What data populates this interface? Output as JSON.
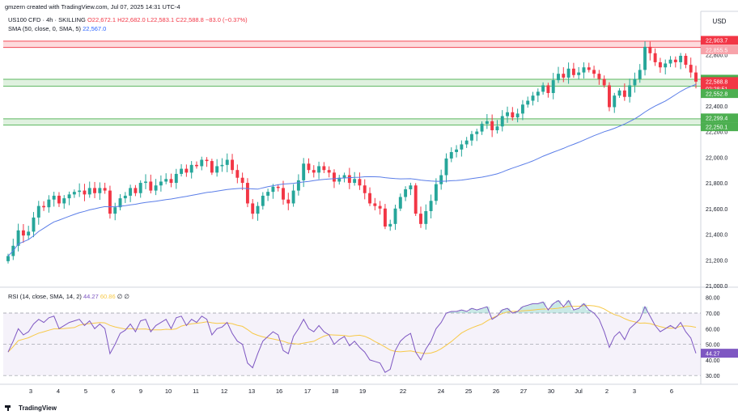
{
  "header": {
    "created_by": "gmzern created with TradingView.com, Jul 07, 2025 14:31 UTC-4",
    "symbol": "US100 CFD · 4h · SKILLING",
    "ohlc": "O22,672.1 H22,682.0 L22,583.1 C22,588.8 −83.0 (−0.37%)",
    "sma_label": "SMA (50, close, 0, SMA, 5)",
    "sma_value": "22,567.0",
    "rsi_label": "RSI (14, close, SMA, 14, 2)",
    "rsi_value": "44.27",
    "rsi_ma_value": "60.86",
    "rsi_extra": "∅ ∅",
    "logo": "TradingView"
  },
  "colors": {
    "up": "#26a69a",
    "down": "#f23645",
    "sma": "#5b7ee8",
    "rsi": "#7e57c2",
    "rsi_ma": "#f7c948",
    "zone_green": "#4caf50",
    "zone_red": "#f23645"
  },
  "chart_data": [
    {
      "type": "candlestick",
      "currency": "USD",
      "y_ticks": [
        21000,
        21200,
        21400,
        21600,
        21800,
        22000,
        22200,
        22400,
        22600,
        22800
      ],
      "y_tick_labels": [
        "21,000.0",
        "21,200.0",
        "21,400.0",
        "21,600.0",
        "21,800.0",
        "22,000.0",
        "22,200.0",
        "22,400.0",
        "22,600.0",
        "22,800.0"
      ],
      "ylim": [
        21000,
        22960
      ],
      "x_labels": [
        "3",
        "4",
        "5",
        "6",
        "9",
        "10",
        "11",
        "12",
        "13",
        "16",
        "17",
        "18",
        "19",
        "22",
        "23",
        "24",
        "25",
        "26",
        "27",
        "30",
        "Jul",
        "2",
        "3",
        "6"
      ],
      "x_label_display": [
        "3",
        "4",
        "5",
        "6",
        "9",
        "10",
        "11",
        "12",
        "13",
        "16",
        "17",
        "18",
        "19",
        "22",
        "24",
        "25",
        "26",
        "27",
        "30",
        "Jul",
        "2",
        "3",
        "6"
      ],
      "closes": [
        21230,
        21310,
        21430,
        21390,
        21420,
        21530,
        21620,
        21610,
        21670,
        21700,
        21640,
        21680,
        21710,
        21730,
        21740,
        21710,
        21760,
        21720,
        21760,
        21740,
        21560,
        21610,
        21680,
        21700,
        21760,
        21720,
        21800,
        21810,
        21740,
        21780,
        21810,
        21830,
        21800,
        21870,
        21910,
        21880,
        21940,
        21930,
        21980,
        21970,
        21880,
        21930,
        21940,
        21980,
        21900,
        21840,
        21800,
        21640,
        21560,
        21620,
        21700,
        21730,
        21770,
        21760,
        21670,
        21640,
        21740,
        21820,
        21950,
        21900,
        21880,
        21930,
        21900,
        21880,
        21810,
        21840,
        21860,
        21800,
        21830,
        21780,
        21720,
        21640,
        21620,
        21600,
        21460,
        21480,
        21600,
        21690,
        21750,
        21780,
        21560,
        21480,
        21580,
        21660,
        21790,
        21860,
        21990,
        22040,
        22060,
        22100,
        22130,
        22180,
        22200,
        22260,
        22280,
        22210,
        22240,
        22320,
        22350,
        22310,
        22340,
        22410,
        22440,
        22480,
        22510,
        22560,
        22500,
        22600,
        22650,
        22620,
        22690,
        22640,
        22660,
        22700,
        22680,
        22650,
        22610,
        22560,
        22390,
        22480,
        22520,
        22470,
        22560,
        22610,
        22680,
        22860,
        22810,
        22740,
        22700,
        22730,
        22760,
        22740,
        22790,
        22720,
        22660,
        22588.8
      ],
      "sma_last": 22567.0,
      "zones": [
        {
          "color": "red",
          "from": 22855.5,
          "to": 22903.7
        },
        {
          "color": "green",
          "from": 22552.8,
          "to": 22607.3
        },
        {
          "color": "green",
          "from": 22250.1,
          "to": 22299.4
        }
      ],
      "price_labels": [
        {
          "value": 22903.7,
          "text": "22,903.7",
          "kind": "red"
        },
        {
          "value": 22855.5,
          "text": "22,855.5",
          "kind": "red-light"
        },
        {
          "value": 22607.3,
          "text": "22,607.3",
          "kind": "green"
        },
        {
          "value": 22588.8,
          "text": "22,588.8",
          "kind": "red"
        },
        {
          "value": 22560.0,
          "text": "02:28:51",
          "kind": "red"
        },
        {
          "value": 22552.8,
          "text": "22,552.8",
          "kind": "green"
        },
        {
          "value": 22299.4,
          "text": "22,299.4",
          "kind": "green"
        },
        {
          "value": 22250.1,
          "text": "22,250.1",
          "kind": "green"
        }
      ]
    },
    {
      "type": "line",
      "name": "RSI (14, close, SMA, 14, 2)",
      "y_ticks": [
        30,
        40,
        50,
        60,
        70,
        80
      ],
      "y_tick_labels": [
        "30.00",
        "40.00",
        "50.00",
        "60.00",
        "70.00",
        "80.00"
      ],
      "ylim": [
        27,
        85
      ],
      "levels": [
        70,
        50,
        30
      ],
      "rsi": [
        45,
        52,
        60,
        56,
        58,
        63,
        66,
        64,
        67,
        68,
        60,
        62,
        64,
        65,
        66,
        62,
        65,
        60,
        63,
        60,
        44,
        50,
        57,
        59,
        63,
        58,
        65,
        66,
        58,
        62,
        64,
        66,
        60,
        67,
        68,
        62,
        66,
        64,
        68,
        66,
        56,
        60,
        61,
        64,
        57,
        52,
        50,
        38,
        35,
        44,
        52,
        55,
        58,
        56,
        46,
        44,
        55,
        60,
        66,
        60,
        58,
        62,
        58,
        56,
        50,
        53,
        55,
        49,
        52,
        48,
        45,
        40,
        39,
        38,
        32,
        34,
        46,
        52,
        55,
        57,
        45,
        40,
        47,
        52,
        60,
        64,
        70,
        71,
        71,
        72,
        71,
        73,
        72,
        73,
        74,
        66,
        68,
        72,
        73,
        70,
        71,
        74,
        75,
        76,
        76,
        77,
        72,
        76,
        78,
        74,
        78,
        72,
        73,
        76,
        72,
        70,
        66,
        58,
        48,
        55,
        58,
        53,
        60,
        63,
        66,
        74,
        68,
        62,
        58,
        60,
        62,
        60,
        64,
        58,
        54,
        44.27
      ],
      "rsi_ma_last": 60.86
    }
  ]
}
